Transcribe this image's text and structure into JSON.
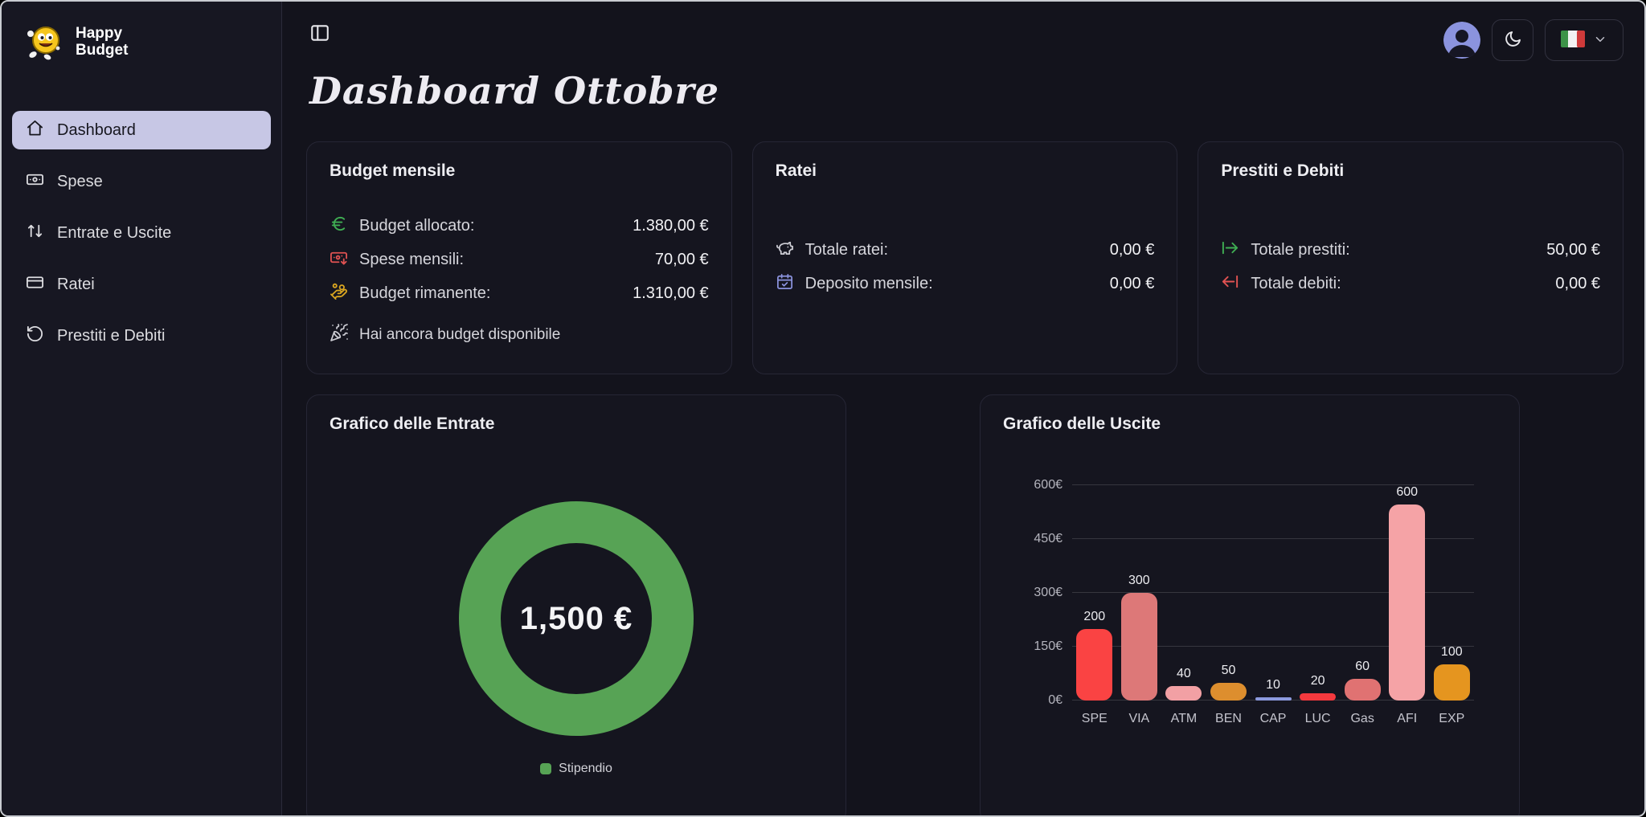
{
  "app": {
    "logo_line1": "Happy",
    "logo_line2": "Budget"
  },
  "sidebar": {
    "items": [
      {
        "label": "Dashboard",
        "active": true
      },
      {
        "label": "Spese",
        "active": false
      },
      {
        "label": "Entrate e Uscite",
        "active": false
      },
      {
        "label": "Ratei",
        "active": false
      },
      {
        "label": "Prestiti e Debiti",
        "active": false
      }
    ]
  },
  "header": {
    "title": "Dashboard Ottobre"
  },
  "cards": {
    "budget": {
      "title": "Budget mensile",
      "rows": [
        {
          "icon": "euro-icon",
          "label": "Budget allocato:",
          "value": "1.380,00 €"
        },
        {
          "icon": "banknote-arrow-down-icon",
          "label": "Spese mensili:",
          "value": "70,00 €"
        },
        {
          "icon": "hand-coins-icon",
          "label": "Budget rimanente:",
          "value": "1.310,00 €"
        }
      ],
      "footer": "Hai ancora budget disponibile"
    },
    "ratei": {
      "title": "Ratei",
      "rows": [
        {
          "icon": "piggy-bank-icon",
          "label": "Totale ratei:",
          "value": "0,00 €"
        },
        {
          "icon": "calendar-check-icon",
          "label": "Deposito mensile:",
          "value": "0,00 €"
        }
      ]
    },
    "prestiti": {
      "title": "Prestiti e Debiti",
      "rows": [
        {
          "icon": "arrow-right-from-line-icon",
          "label": "Totale prestiti:",
          "value": "50,00 €"
        },
        {
          "icon": "arrow-left-from-line-icon",
          "label": "Totale debiti:",
          "value": "0,00 €"
        }
      ]
    }
  },
  "colors": {
    "accent_green": "#57a355",
    "icon_green": "#3fae53",
    "icon_red": "#e05252",
    "icon_yellow": "#d9a520",
    "icon_purple": "#8b93de",
    "icon_gray": "#cfcfd6",
    "active_nav_bg": "#c7c7e5"
  },
  "chart_data": [
    {
      "type": "pie",
      "subtype": "donut",
      "title": "Grafico delle Entrate",
      "labels": [
        "Stipendio"
      ],
      "values": [
        1500
      ],
      "colors": [
        "#57a355"
      ],
      "center_label": "1,500 €",
      "legend_position": "bottom"
    },
    {
      "type": "bar",
      "title": "Grafico delle Uscite",
      "categories": [
        "SPE",
        "VIA",
        "ATM",
        "BEN",
        "CAP",
        "LUC",
        "Gas",
        "AFI",
        "EXP"
      ],
      "values": [
        200,
        300,
        40,
        50,
        10,
        20,
        60,
        600,
        100
      ],
      "bar_colors": [
        "#fa4343",
        "#dd7878",
        "#f2a0a4",
        "#dd8e2e",
        "#8c9ade",
        "#f5393e",
        "#e07272",
        "#f5a3a6",
        "#e5951f"
      ],
      "ytick_labels": [
        "0€",
        "150€",
        "300€",
        "450€",
        "600€"
      ],
      "ylim": [
        0,
        600
      ],
      "grid": true,
      "legend_position": "none"
    }
  ]
}
